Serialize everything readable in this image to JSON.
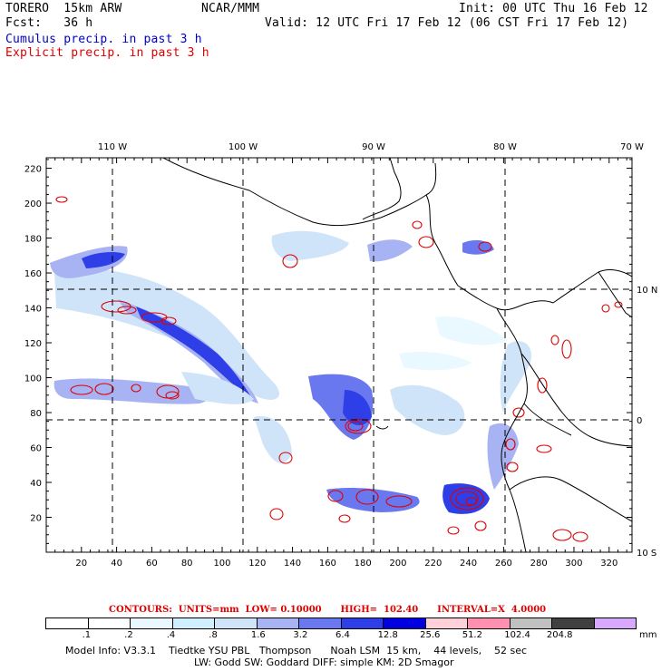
{
  "header": {
    "model": "TORERO  15km ARW",
    "center": "NCAR/MMM",
    "init": "Init: 00 UTC Thu 16 Feb 12",
    "fcst": "Fcst:   36 h",
    "valid": "Valid: 12 UTC Fri 17 Feb 12 (06 CST Fri 17 Feb 12)",
    "cumulus": "Cumulus precip. in past 3 h",
    "explicit": "Explicit precip. in past 3 h"
  },
  "map": {
    "lon_labels": [
      "110 W",
      "100 W",
      "90 W",
      "80 W",
      "70 W"
    ],
    "lat_labels": [
      "10 N",
      "0",
      "10 S"
    ],
    "x_ticks": [
      "20",
      "40",
      "60",
      "80",
      "100",
      "120",
      "140",
      "160",
      "180",
      "200",
      "220",
      "240",
      "260",
      "280",
      "300",
      "320"
    ],
    "y_ticks": [
      "20",
      "40",
      "60",
      "80",
      "100",
      "120",
      "140",
      "160",
      "180",
      "200",
      "220"
    ]
  },
  "legend": {
    "contours_text": "CONTOURS:  UNITS=mm  LOW= 0.10000      HIGH=  102.40      INTERVAL=X  4.0000",
    "labels": [
      ".1",
      ".2",
      ".4",
      ".8",
      "1.6",
      "3.2",
      "6.4",
      "12.8",
      "25.6",
      "51.2",
      "102.4",
      "204.8"
    ],
    "units": "mm",
    "colors": [
      "#ffffff",
      "#ffffff",
      "#eaf8ff",
      "#d0f0ff",
      "#cfe4f8",
      "#a7b3f2",
      "#6a78f0",
      "#2f3fe8",
      "#0000e0",
      "#ffd0d8",
      "#ff90b0",
      "#c0c0c0",
      "#404040",
      "#d8a8ff"
    ]
  },
  "footer": {
    "line1": "Model Info: V3.3.1    Tiedtke YSU PBL   Thompson      Noah LSM  15 km,    44 levels,    52 sec",
    "line2": "LW: Godd SW: Goddard DIFF: simple KM: 2D Smagor"
  }
}
